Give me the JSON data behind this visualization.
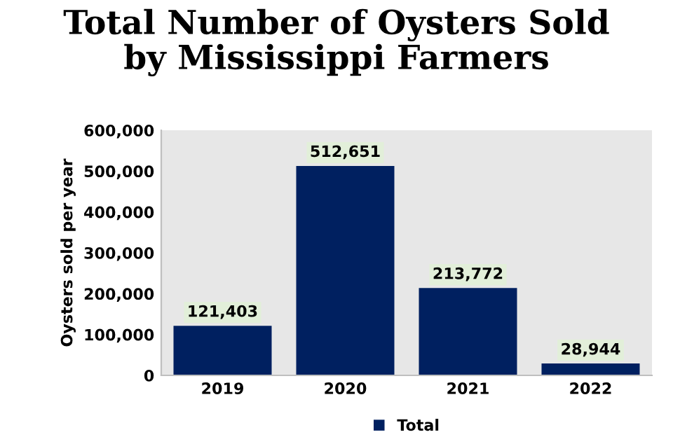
{
  "chart_data": {
    "type": "bar",
    "title": "Total Number of Oysters Sold\nby Mississippi Farmers",
    "ylabel": "Oysters sold per year",
    "categories": [
      "2019",
      "2020",
      "2021",
      "2022"
    ],
    "series": [
      {
        "name": "Total",
        "color": "#002060",
        "values": [
          121403,
          512651,
          213772,
          28944
        ],
        "value_labels": [
          "121,403",
          "512,651",
          "213,772",
          "28,944"
        ]
      }
    ],
    "ylim": [
      0,
      600000
    ],
    "yticks": [
      {
        "value": 0,
        "label": "0"
      },
      {
        "value": 100000,
        "label": "100,000"
      },
      {
        "value": 200000,
        "label": "200,000"
      },
      {
        "value": 300000,
        "label": "300,000"
      },
      {
        "value": 400000,
        "label": "400,000"
      },
      {
        "value": 500000,
        "label": "500,000"
      },
      {
        "value": 600000,
        "label": "600,000"
      }
    ],
    "legend": "bottom",
    "grid": false
  }
}
